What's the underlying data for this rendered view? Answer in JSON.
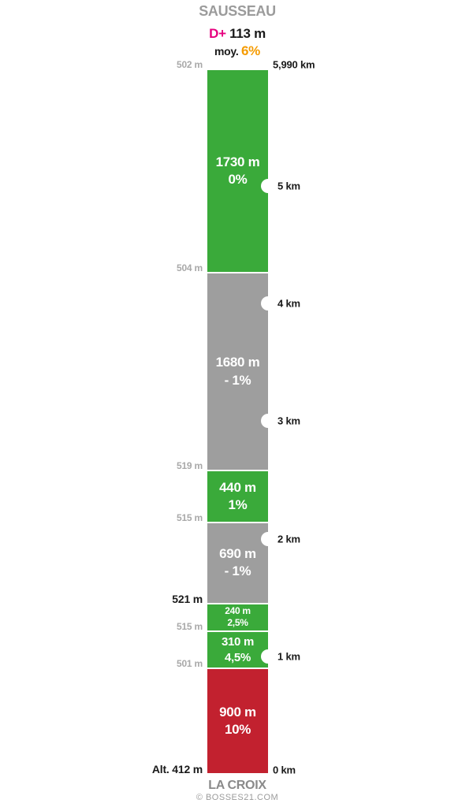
{
  "header": {
    "title": "SAUSSEAU",
    "dplus_label": "D+",
    "dplus_value": "113 m",
    "avg_label": "moy.",
    "avg_value": "6%"
  },
  "footer": {
    "start_name": "LA CROIX",
    "credit": "© BOSSES21.COM"
  },
  "colors": {
    "green": "#3aaa3a",
    "gray": "#9e9e9e",
    "red": "#c2212f",
    "accent_magenta": "#e6007e",
    "accent_orange": "#f59b00",
    "title_gray": "#9b9b9b",
    "axis_gray": "#a9a9a9",
    "text_black": "#1a1a1a"
  },
  "chart_data": {
    "type": "bar",
    "subtype": "climb-profile-column",
    "title": "SAUSSEAU",
    "total_climb": "D+ 113 m",
    "average_gradient": "moy. 6%",
    "total_distance_km": 5.99,
    "start_name": "LA CROIX",
    "start_altitude_label": "Alt. 412 m",
    "segments": [
      {
        "length_label": "900 m",
        "gradient_label": "10%",
        "from_km": 0.0,
        "to_km": 0.9,
        "color": "red"
      },
      {
        "length_label": "310 m",
        "gradient_label": "4,5%",
        "from_km": 0.9,
        "to_km": 1.21,
        "color": "green"
      },
      {
        "length_label": "240 m",
        "gradient_label": "2,5%",
        "from_km": 1.21,
        "to_km": 1.45,
        "color": "green"
      },
      {
        "length_label": "690 m",
        "gradient_label": "- 1%",
        "from_km": 1.45,
        "to_km": 2.14,
        "color": "gray"
      },
      {
        "length_label": "440 m",
        "gradient_label": "1%",
        "from_km": 2.14,
        "to_km": 2.58,
        "color": "green"
      },
      {
        "length_label": "1680 m",
        "gradient_label": "- 1%",
        "from_km": 2.58,
        "to_km": 4.26,
        "color": "gray"
      },
      {
        "length_label": "1730 m",
        "gradient_label": "0%",
        "from_km": 4.26,
        "to_km": 5.99,
        "color": "green"
      }
    ],
    "left_axis_altitudes": [
      {
        "label": "502 m",
        "km": 5.99,
        "emphasis": false
      },
      {
        "label": "504 m",
        "km": 4.26,
        "emphasis": false
      },
      {
        "label": "519 m",
        "km": 2.58,
        "emphasis": false
      },
      {
        "label": "515 m",
        "km": 2.14,
        "emphasis": false
      },
      {
        "label": "521 m",
        "km": 1.45,
        "emphasis": true
      },
      {
        "label": "515 m",
        "km": 1.21,
        "emphasis": false
      },
      {
        "label": "501 m",
        "km": 0.9,
        "emphasis": false
      },
      {
        "label": "Alt. 412 m",
        "km": 0.0,
        "emphasis": true
      }
    ],
    "right_axis_distances": [
      {
        "label": "5,990 km",
        "km": 5.99,
        "marker": false
      },
      {
        "label": "5 km",
        "km": 5,
        "marker": true
      },
      {
        "label": "4 km",
        "km": 4,
        "marker": true
      },
      {
        "label": "3 km",
        "km": 3,
        "marker": true
      },
      {
        "label": "2 km",
        "km": 2,
        "marker": true
      },
      {
        "label": "1 km",
        "km": 1,
        "marker": true
      },
      {
        "label": "0 km",
        "km": 0,
        "marker": false
      }
    ]
  }
}
